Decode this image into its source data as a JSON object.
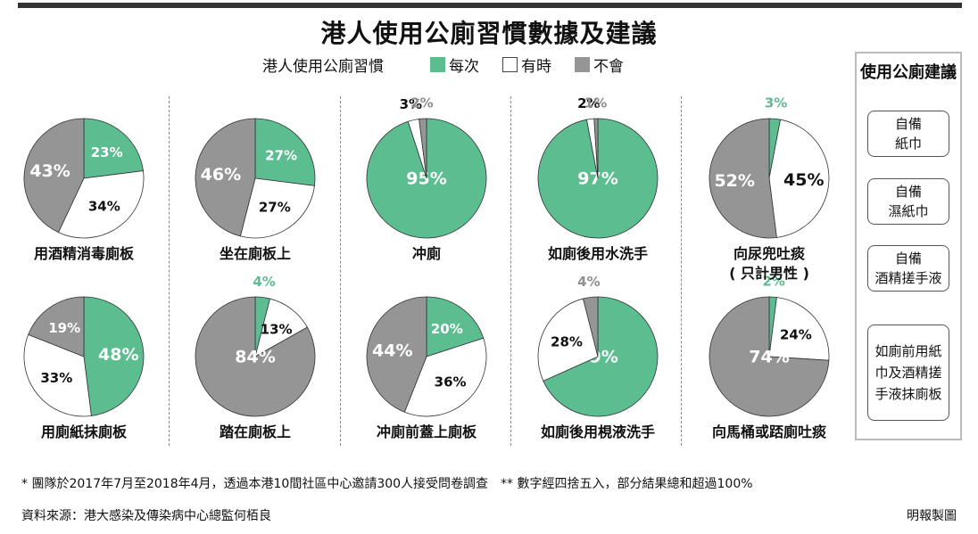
{
  "title": "港人使用公廁習慣數據及建議",
  "legend": {
    "title": "港人使用公廁習慣",
    "items": [
      {
        "label": "每次",
        "color": "#5bbd90"
      },
      {
        "label": "有時",
        "color": "#ffffff"
      },
      {
        "label": "不會",
        "color": "#959595"
      }
    ]
  },
  "chart_data": {
    "type": "pie",
    "series_names": [
      "每次",
      "有時",
      "不會"
    ],
    "colors": [
      "#5bbd90",
      "#ffffff",
      "#959595"
    ],
    "charts": [
      {
        "label": "用酒精消毒廁板",
        "values": [
          23,
          34,
          43
        ]
      },
      {
        "label": "坐在廁板上",
        "values": [
          27,
          27,
          46
        ]
      },
      {
        "label": "冲廁",
        "values": [
          95,
          3,
          2
        ]
      },
      {
        "label": "如廁後用水洗手",
        "values": [
          97,
          2,
          1
        ]
      },
      {
        "label": "向尿兜吐痰\n( 只計男性 )",
        "values": [
          3,
          45,
          52
        ]
      },
      {
        "label": "用廁紙抹廁板",
        "values": [
          48,
          33,
          19
        ]
      },
      {
        "label": "踏在廁板上",
        "values": [
          4,
          13,
          84
        ]
      },
      {
        "label": "冲廁前蓋上廁板",
        "values": [
          20,
          36,
          44
        ]
      },
      {
        "label": "如廁後用梘液洗手",
        "values": [
          69,
          28,
          4
        ]
      },
      {
        "label": "向馬桶或踎廁吐痰",
        "values": [
          2,
          24,
          74
        ]
      }
    ]
  },
  "advice": {
    "title": "使用公廁建議",
    "items": [
      "自備\n紙巾",
      "自備\n濕紙巾",
      "自備\n酒精搓手液",
      "如廁前用紙\n巾及酒精搓\n手液抹廁板"
    ]
  },
  "footnote1": "* 團隊於2017年7月至2018年4月，透過本港10間社區中心邀請300人接受問卷調查　** 數字經四捨五入，部分結果總和超過100%",
  "footnote2": "資料來源：港大感染及傳染病中心總監何栢良",
  "credit": "明報製圖"
}
